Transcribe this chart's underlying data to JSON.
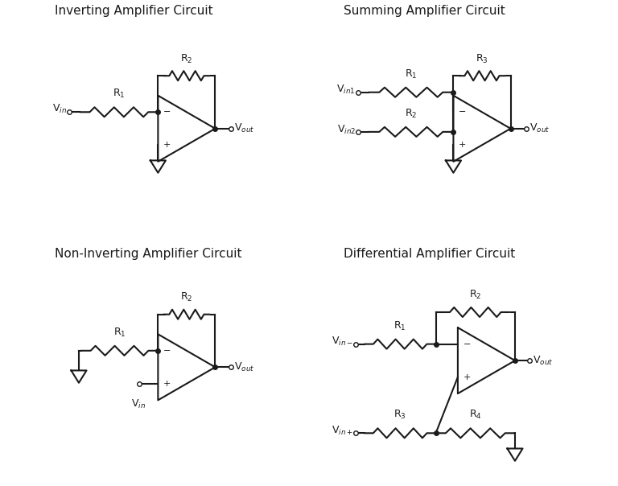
{
  "bg_color": "#ffffff",
  "line_color": "#1a1a1a",
  "lw": 1.5,
  "titles": [
    "Inverting Amplifier Circuit",
    "Summing Amplifier Circuit",
    "Non-Inverting Amplifier Circuit",
    "Differential Amplifier Circuit"
  ]
}
